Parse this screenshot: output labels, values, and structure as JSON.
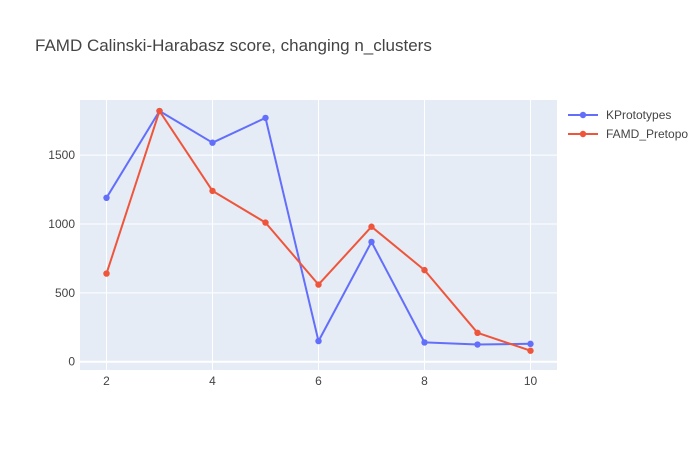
{
  "chart_data": {
    "type": "line",
    "title": "FAMD Calinski-Harabasz score, changing n_clusters",
    "xlabel": "",
    "ylabel": "",
    "x": [
      2,
      3,
      4,
      5,
      6,
      7,
      8,
      9,
      10
    ],
    "xlim": [
      1.5,
      10.5
    ],
    "ylim": [
      -60,
      1900
    ],
    "xticks": [
      2,
      4,
      6,
      8,
      10
    ],
    "yticks": [
      0,
      500,
      1000,
      1500
    ],
    "ytick_labels": [
      "0",
      "500",
      "1000",
      "1500"
    ],
    "grid": true,
    "legend_position": "top-right",
    "series": [
      {
        "name": "KPrototypes",
        "color": "#636efa",
        "values": [
          1190,
          1820,
          1590,
          1770,
          150,
          870,
          140,
          125,
          130
        ]
      },
      {
        "name": "FAMD_Pretopo",
        "color": "#ef553b",
        "values": [
          640,
          1820,
          1240,
          1010,
          560,
          980,
          665,
          210,
          80
        ]
      }
    ]
  }
}
